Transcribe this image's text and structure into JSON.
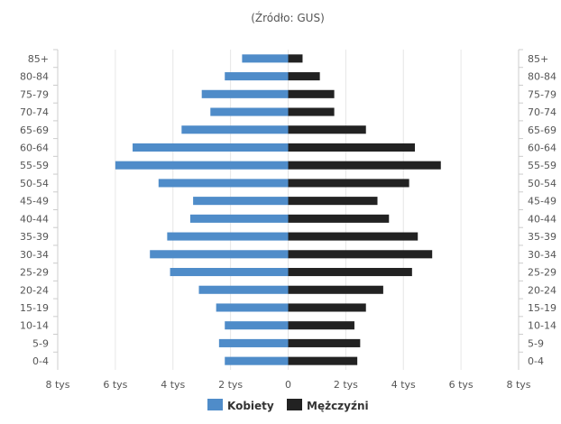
{
  "chart_data": {
    "type": "bar",
    "subtitle": "(Źródło: GUS)",
    "categories": [
      "85+",
      "80-84",
      "75-79",
      "70-74",
      "65-69",
      "60-64",
      "55-59",
      "50-54",
      "45-49",
      "40-44",
      "35-39",
      "30-34",
      "25-29",
      "20-24",
      "15-19",
      "10-14",
      "5-9",
      "0-4"
    ],
    "series": [
      {
        "name": "Kobiety",
        "color": "#4f8cc9",
        "side": "left",
        "values": [
          1600,
          2200,
          3000,
          2700,
          3700,
          5400,
          6000,
          4500,
          3300,
          3400,
          4200,
          4800,
          4100,
          3100,
          2500,
          2200,
          2400,
          2200
        ]
      },
      {
        "name": "Mężczyźni",
        "color": "#222222",
        "side": "right",
        "values": [
          500,
          1100,
          1600,
          1600,
          2700,
          4400,
          5300,
          4200,
          3100,
          3500,
          4500,
          5000,
          4300,
          3300,
          2700,
          2300,
          2500,
          2400
        ]
      }
    ],
    "xlim": [
      -8000,
      8000
    ],
    "xticks": [
      -8000,
      -6000,
      -4000,
      -2000,
      0,
      2000,
      4000,
      6000,
      8000
    ],
    "xtick_labels": [
      "8 tys",
      "6 tys",
      "4 tys",
      "2 tys",
      "0",
      "2 tys",
      "4 tys",
      "6 tys",
      "8 tys"
    ],
    "grid": true,
    "legend": "bottom-center"
  }
}
